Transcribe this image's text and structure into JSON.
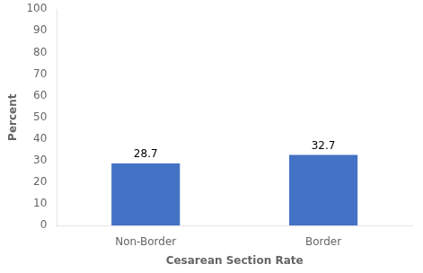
{
  "chart_data": {
    "type": "bar",
    "categories": [
      "Non-Border",
      "Border"
    ],
    "values": [
      28.7,
      32.7
    ],
    "color": "#4472C4",
    "xlabel": "Cesarean Section Rate",
    "ylabel": "Percent",
    "ylim": [
      0,
      100
    ],
    "yticks": [
      0,
      10,
      20,
      30,
      40,
      50,
      60,
      70,
      80,
      90,
      100
    ],
    "grid": false,
    "data_labels": true
  }
}
